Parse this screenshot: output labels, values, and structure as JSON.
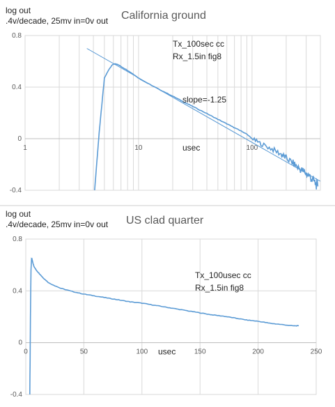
{
  "chart_data": [
    {
      "type": "line",
      "title": "California ground",
      "ylabel_lines": [
        "log out",
        ".4v/decade, 25mv in=0v out"
      ],
      "xlabel": "usec",
      "x_scale": "log",
      "xlim": [
        1,
        400
      ],
      "ylim": [
        -0.4,
        0.8
      ],
      "y_ticks": [
        "0.8",
        "0.4",
        "0",
        "-0.4"
      ],
      "y_tick_values": [
        0.8,
        0.4,
        0,
        -0.4
      ],
      "x_ticks": [
        "1",
        "10",
        "100"
      ],
      "x_tick_values": [
        1,
        10,
        100
      ],
      "grid": true,
      "annotations": [
        "Tx_100sec cc",
        "Rx_1.5in fig8",
        "slope=-1.25"
      ],
      "series": [
        {
          "color": "#5B9BD5",
          "noise_from_x": 100,
          "x": [
            4.1,
            4.5,
            5.0,
            5.5,
            5.9,
            6.2,
            6.6,
            7,
            8,
            9,
            10,
            12,
            15,
            20,
            25,
            30,
            40,
            50,
            60,
            70,
            80,
            90,
            100,
            120,
            150,
            180,
            200,
            230,
            260,
            290,
            320,
            350,
            380
          ],
          "y": [
            -0.4,
            0.05,
            0.47,
            0.54,
            0.575,
            0.58,
            0.575,
            0.56,
            0.53,
            0.5,
            0.47,
            0.43,
            0.385,
            0.33,
            0.285,
            0.25,
            0.195,
            0.15,
            0.115,
            0.085,
            0.06,
            0.035,
            0.0,
            -0.04,
            -0.08,
            -0.12,
            -0.15,
            -0.19,
            -0.23,
            -0.26,
            -0.29,
            -0.33,
            -0.37
          ]
        },
        {
          "color": "#5B9BD5",
          "x": [
            3.5,
            400
          ],
          "y": [
            0.7,
            -0.33
          ]
        }
      ]
    },
    {
      "type": "line",
      "title": "US clad quarter",
      "ylabel_lines": [
        "log out",
        ".4v/decade, 25mv in=0v out"
      ],
      "xlabel": "usec",
      "xlim": [
        0,
        250
      ],
      "ylim": [
        -0.4,
        0.8
      ],
      "y_ticks": [
        "0.8",
        "0.4",
        "0",
        "-0.4"
      ],
      "y_tick_values": [
        0.8,
        0.4,
        0,
        -0.4
      ],
      "x_ticks": [
        "0",
        "50",
        "100",
        "150",
        "200",
        "250"
      ],
      "x_tick_values": [
        0,
        50,
        100,
        150,
        200,
        250
      ],
      "grid": true,
      "annotations": [
        "Tx_100usec cc",
        "Rx_1.5in fig8"
      ],
      "series": [
        {
          "color": "#5B9BD5",
          "x": [
            3.5,
            4,
            4.5,
            5,
            5.5,
            6,
            7,
            9,
            12,
            15,
            20,
            30,
            40,
            50,
            60,
            70,
            80,
            90,
            100,
            110,
            120,
            130,
            140,
            150,
            160,
            170,
            180,
            190,
            200,
            210,
            220,
            230,
            235
          ],
          "y": [
            -0.4,
            0.2,
            0.56,
            0.65,
            0.64,
            0.62,
            0.59,
            0.56,
            0.53,
            0.5,
            0.46,
            0.42,
            0.395,
            0.375,
            0.36,
            0.345,
            0.33,
            0.315,
            0.305,
            0.29,
            0.275,
            0.26,
            0.245,
            0.23,
            0.215,
            0.205,
            0.19,
            0.175,
            0.165,
            0.15,
            0.14,
            0.13,
            0.13
          ]
        }
      ]
    }
  ]
}
